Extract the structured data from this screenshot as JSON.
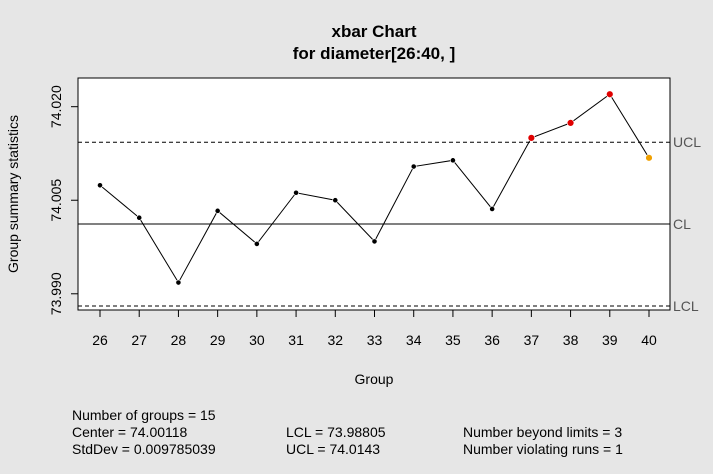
{
  "colors": {
    "in_control": "#000000",
    "beyond_limits": "#e00000",
    "violating_runs": "#f0a000",
    "limit_label": "#555555"
  },
  "chart_data": {
    "type": "line",
    "title": "xbar Chart",
    "subtitle": "for diameter[26:40, ]",
    "xlabel": "Group",
    "ylabel": "Group summary statistics",
    "categories": [
      "26",
      "27",
      "28",
      "29",
      "30",
      "31",
      "32",
      "33",
      "34",
      "35",
      "36",
      "37",
      "38",
      "39",
      "40"
    ],
    "values": [
      74.0074,
      74.0022,
      73.9918,
      74.0033,
      73.998,
      74.0062,
      74.005,
      73.9984,
      74.0104,
      74.0114,
      74.0036,
      74.015,
      74.0174,
      74.022,
      74.0118
    ],
    "point_status": [
      "ok",
      "ok",
      "ok",
      "ok",
      "ok",
      "ok",
      "ok",
      "ok",
      "ok",
      "ok",
      "ok",
      "beyond",
      "beyond",
      "beyond",
      "violating"
    ],
    "ylim": [
      73.9874,
      74.0246
    ],
    "yticks": [
      73.99,
      74.005,
      74.02
    ],
    "ytick_labels": [
      "73.990",
      "74.005",
      "74.020"
    ],
    "center": 74.00118,
    "lcl": 73.98805,
    "ucl": 74.0143,
    "limit_labels": {
      "ucl": "UCL",
      "cl": "CL",
      "lcl": "LCL"
    }
  },
  "stats": {
    "groups": "Number of groups = 15",
    "center": "Center = 74.00118",
    "stddev": "StdDev = 0.009785039",
    "lcl": "LCL = 73.98805",
    "ucl": "UCL = 74.0143",
    "beyond": "Number beyond limits = 3",
    "violating": "Number violating runs = 1"
  }
}
